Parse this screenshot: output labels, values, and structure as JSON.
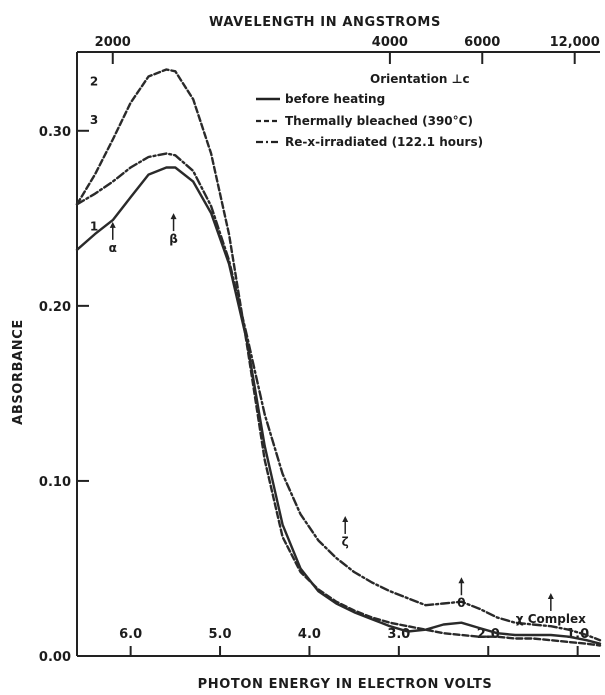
{
  "chart_data": {
    "type": "line",
    "title": "",
    "xlabel": "PHOTON ENERGY IN ELECTRON VOLTS",
    "x2label": "WAVELENGTH IN ANGSTROMS",
    "ylabel": "ABSORBANCE",
    "xlim": [
      6.6,
      0.75
    ],
    "ylim": [
      0.0,
      0.345
    ],
    "x_ticks": [
      {
        "value": 6.0,
        "label": "6.0"
      },
      {
        "value": 5.0,
        "label": "5.0"
      },
      {
        "value": 4.0,
        "label": "4.0"
      },
      {
        "value": 3.0,
        "label": "3.0"
      },
      {
        "value": 2.0,
        "label": "2.0"
      },
      {
        "value": 1.0,
        "label": "1.0"
      }
    ],
    "y_ticks": [
      {
        "value": 0.0,
        "label": "0.00"
      },
      {
        "value": 0.1,
        "label": "0.10"
      },
      {
        "value": 0.2,
        "label": "0.20"
      },
      {
        "value": 0.3,
        "label": "0.30"
      }
    ],
    "top_ticks": [
      {
        "value": 6.2,
        "label": "2000"
      },
      {
        "value": 3.1,
        "label": "4000"
      },
      {
        "value": 2.067,
        "label": "6000"
      },
      {
        "value": 1.033,
        "label": "12,000"
      }
    ],
    "legend": {
      "title": "Orientation ⊥c",
      "placement": "top-right",
      "entries": [
        "before heating",
        "Thermally bleached (390°C)",
        "Re-x-irradiated (122.1 hours)"
      ]
    },
    "series": [
      {
        "name": "before heating",
        "curve_label": "1",
        "style": "solid",
        "x": [
          6.6,
          6.4,
          6.2,
          6.0,
          5.8,
          5.6,
          5.5,
          5.3,
          5.1,
          4.9,
          4.7,
          4.5,
          4.3,
          4.1,
          3.9,
          3.7,
          3.5,
          3.3,
          3.1,
          2.9,
          2.7,
          2.5,
          2.3,
          2.1,
          1.9,
          1.7,
          1.5,
          1.3,
          1.1,
          0.9,
          0.75
        ],
        "y": [
          0.232,
          0.241,
          0.249,
          0.262,
          0.275,
          0.279,
          0.279,
          0.271,
          0.253,
          0.224,
          0.18,
          0.12,
          0.075,
          0.05,
          0.037,
          0.03,
          0.025,
          0.021,
          0.017,
          0.014,
          0.015,
          0.018,
          0.019,
          0.016,
          0.013,
          0.012,
          0.012,
          0.012,
          0.011,
          0.009,
          0.007
        ]
      },
      {
        "name": "Thermally bleached (390°C)",
        "curve_label": "2",
        "style": "dashed",
        "x": [
          6.6,
          6.4,
          6.2,
          6.0,
          5.8,
          5.6,
          5.5,
          5.3,
          5.1,
          4.9,
          4.7,
          4.5,
          4.3,
          4.1,
          3.9,
          3.7,
          3.5,
          3.3,
          3.1,
          2.9,
          2.7,
          2.5,
          2.3,
          2.1,
          1.9,
          1.7,
          1.5,
          1.3,
          1.1,
          0.9,
          0.75
        ],
        "y": [
          0.258,
          0.275,
          0.295,
          0.316,
          0.331,
          0.335,
          0.334,
          0.318,
          0.287,
          0.241,
          0.178,
          0.112,
          0.068,
          0.048,
          0.038,
          0.031,
          0.026,
          0.022,
          0.019,
          0.017,
          0.015,
          0.013,
          0.012,
          0.011,
          0.011,
          0.01,
          0.01,
          0.009,
          0.008,
          0.007,
          0.006
        ]
      },
      {
        "name": "Re-x-irradiated (122.1 hours)",
        "curve_label": "3",
        "style": "dash-dot",
        "x": [
          6.6,
          6.4,
          6.2,
          6.0,
          5.8,
          5.6,
          5.5,
          5.3,
          5.1,
          4.9,
          4.7,
          4.5,
          4.3,
          4.1,
          3.9,
          3.7,
          3.5,
          3.3,
          3.1,
          2.9,
          2.7,
          2.5,
          2.3,
          2.1,
          1.9,
          1.7,
          1.5,
          1.3,
          1.1,
          0.9,
          0.75
        ],
        "y": [
          0.258,
          0.264,
          0.271,
          0.279,
          0.285,
          0.287,
          0.286,
          0.277,
          0.257,
          0.226,
          0.183,
          0.138,
          0.104,
          0.081,
          0.066,
          0.056,
          0.048,
          0.042,
          0.037,
          0.033,
          0.029,
          0.03,
          0.031,
          0.027,
          0.022,
          0.019,
          0.018,
          0.017,
          0.015,
          0.012,
          0.009
        ]
      }
    ],
    "annotations": [
      {
        "text": "α",
        "x": 6.2,
        "y": 0.24
      },
      {
        "text": "β",
        "x": 5.52,
        "y": 0.245
      },
      {
        "text": "ζ",
        "x": 3.6,
        "y": 0.072
      },
      {
        "text": "θ",
        "x": 2.3,
        "y": 0.037
      },
      {
        "text": "χ Complex",
        "x": 1.3,
        "y": 0.028
      }
    ]
  }
}
